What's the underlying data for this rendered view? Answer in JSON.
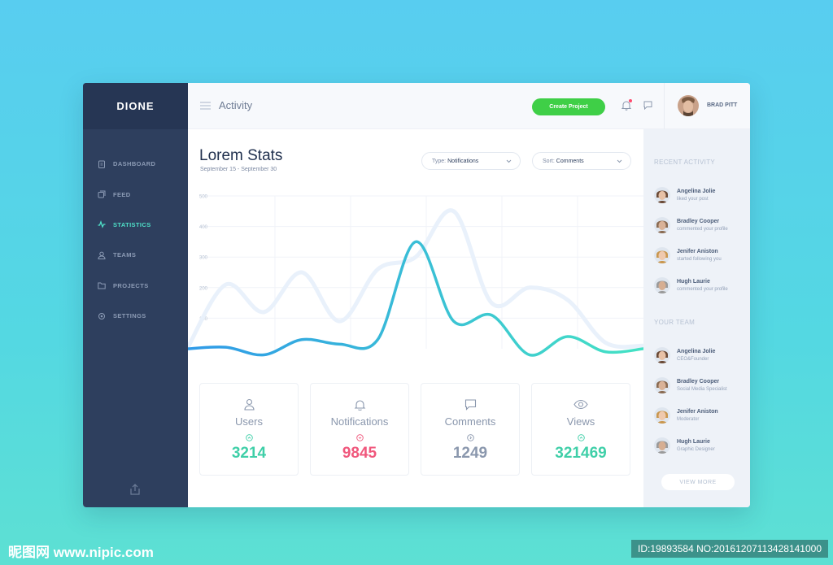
{
  "app": {
    "logo": "DIONE"
  },
  "sidebar": {
    "items": [
      {
        "label": "DASHBOARD",
        "icon": "clipboard-icon"
      },
      {
        "label": "FEED",
        "icon": "feed-icon"
      },
      {
        "label": "STATISTICS",
        "icon": "activity-icon",
        "active": true
      },
      {
        "label": "TEAMS",
        "icon": "user-icon"
      },
      {
        "label": "PROJECTS",
        "icon": "folder-icon"
      },
      {
        "label": "SETTINGS",
        "icon": "gear-icon"
      }
    ]
  },
  "header": {
    "title": "Activity",
    "create_button": "Create Project",
    "user_name": "BRAD PITT"
  },
  "main": {
    "title": "Lorem Stats",
    "date_range": "September 15 - September 30",
    "filters": {
      "type_label": "Type:",
      "type_value": "Notifications",
      "sort_label": "Sort:",
      "sort_value": "Comments"
    },
    "cards": [
      {
        "label": "Users",
        "value": "3214",
        "color": "#3fcfa8",
        "icon": "user-icon",
        "trend": "up"
      },
      {
        "label": "Notifications",
        "value": "9845",
        "color": "#f0577c",
        "icon": "bell-icon",
        "trend": "down"
      },
      {
        "label": "Comments",
        "value": "1249",
        "color": "#8a97ad",
        "icon": "chat-icon",
        "trend": "neutral"
      },
      {
        "label": "Views",
        "value": "321469",
        "color": "#3fcfa8",
        "icon": "eye-icon",
        "trend": "up"
      }
    ]
  },
  "chart_data": {
    "type": "line",
    "title": "",
    "ylim": [
      0,
      500
    ],
    "yticks": [
      "500",
      "400",
      "300",
      "200",
      "100"
    ],
    "series": [
      {
        "name": "primary",
        "x": [
          0,
          1,
          2,
          3,
          4,
          5,
          6,
          7,
          8,
          9,
          10,
          11,
          12
        ],
        "values": [
          0,
          5,
          -20,
          30,
          15,
          30,
          350,
          90,
          110,
          -20,
          40,
          -10,
          0
        ]
      },
      {
        "name": "secondary",
        "x": [
          0,
          1,
          2,
          3,
          4,
          5,
          6,
          7,
          8,
          9,
          10,
          11,
          12
        ],
        "values": [
          5,
          210,
          120,
          250,
          90,
          260,
          300,
          450,
          150,
          200,
          160,
          20,
          10
        ]
      }
    ],
    "colors": {
      "primary_start": "#2f9ae8",
      "primary_end": "#44e2c4",
      "secondary": "#e9f1fb",
      "grid": "#f0f3f8"
    }
  },
  "right_panel": {
    "recent_title": "RECENT ACTIVITY",
    "recent": [
      {
        "name": "Angelina Jolie",
        "sub": "liked your post"
      },
      {
        "name": "Bradley Cooper",
        "sub": "commented your profile"
      },
      {
        "name": "Jenifer Aniston",
        "sub": "started following you"
      },
      {
        "name": "Hugh Laurie",
        "sub": "commented your profile"
      }
    ],
    "team_title": "YOUR TEAM",
    "team": [
      {
        "name": "Angelina Jolie",
        "sub": "CEO&Founder"
      },
      {
        "name": "Bradley Cooper",
        "sub": "Social Media Specialist"
      },
      {
        "name": "Jenifer Aniston",
        "sub": "Moderator"
      },
      {
        "name": "Hugh Laurie",
        "sub": "Graphic Designer"
      }
    ],
    "view_more": "VIEW MORE"
  },
  "watermark": {
    "left": "昵图网 www.nipic.com",
    "right": "ID:19893584 NO:20161207113428141000"
  }
}
